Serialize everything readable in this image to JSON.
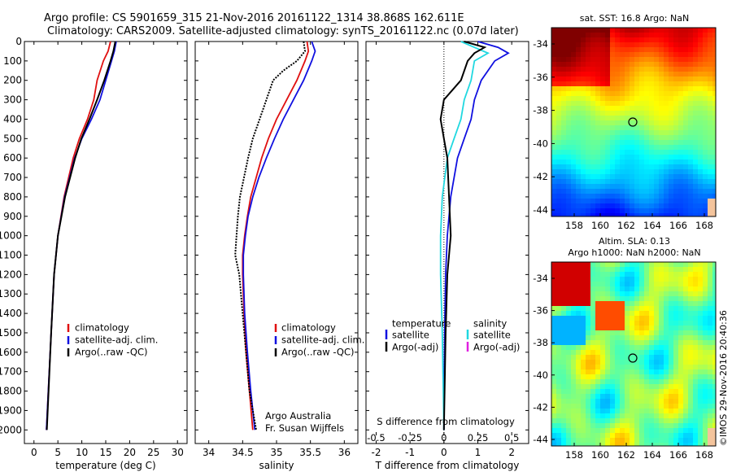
{
  "title": {
    "line1": "Argo profile: CS 5901659_315 21-Nov-2016 20161122_1314 38.868S 162.611E",
    "line2": "Climatology: CARS2009. Satellite-adjusted climatology: synTS_20161122.nc (0.07d later)"
  },
  "colors": {
    "clim": "#e01010",
    "sat": "#1010e0",
    "argo": "#000000",
    "sat_s": "#20d8e0",
    "argo_s": "#e020e0"
  },
  "chart_data": [
    {
      "id": "temperature",
      "type": "line",
      "xlabel": "temperature (deg C)",
      "ylabel": "",
      "xlim": [
        -2,
        32
      ],
      "ylim": [
        2070,
        0
      ],
      "xticks": [
        0,
        5,
        10,
        15,
        20,
        25,
        30
      ],
      "xtick_labels": [
        "0",
        "5",
        "10",
        "15",
        "20",
        "25",
        "30"
      ],
      "yticks": [
        0,
        100,
        200,
        300,
        400,
        500,
        600,
        700,
        800,
        900,
        1000,
        1100,
        1200,
        1300,
        1400,
        1500,
        1600,
        1700,
        1800,
        1900,
        2000
      ],
      "legend": [
        "climatology",
        "satellite-adj. clim.",
        "Argo(..raw -QC)"
      ],
      "series": [
        {
          "name": "climatology",
          "color_key": "clim",
          "depth": [
            0,
            50,
            100,
            200,
            300,
            400,
            500,
            600,
            800,
            1000,
            1200,
            1500,
            2000
          ],
          "values": [
            16.0,
            15.5,
            14.5,
            13.2,
            12.5,
            11.2,
            9.5,
            8.2,
            6.3,
            5.0,
            4.2,
            3.6,
            2.6
          ]
        },
        {
          "name": "satellite-adj. clim.",
          "color_key": "sat",
          "depth": [
            0,
            50,
            100,
            200,
            300,
            400,
            500,
            600,
            800,
            1000,
            1200,
            1500,
            2000
          ],
          "values": [
            17.2,
            16.8,
            16.2,
            15.0,
            13.8,
            12.0,
            10.0,
            8.5,
            6.4,
            5.0,
            4.2,
            3.6,
            2.6
          ]
        },
        {
          "name": "Argo(..raw -QC)",
          "color_key": "argo",
          "depth": [
            0,
            50,
            100,
            200,
            300,
            400,
            500,
            600,
            800,
            1000,
            1200,
            1500,
            2000
          ],
          "values": [
            17.0,
            16.6,
            16.0,
            14.7,
            13.2,
            11.6,
            9.9,
            8.6,
            6.5,
            5.0,
            4.2,
            3.6,
            2.7
          ]
        }
      ]
    },
    {
      "id": "salinity",
      "type": "line",
      "xlabel": "salinity",
      "ylabel": "",
      "xlim": [
        33.8,
        36.2
      ],
      "ylim": [
        2070,
        0
      ],
      "xticks": [
        34,
        34.5,
        35,
        35.5,
        36
      ],
      "xtick_labels": [
        "34",
        "34.5",
        "35",
        "35.5",
        "36"
      ],
      "legend": [
        "climatology",
        "satellite-adj. clim.",
        "Argo(..raw -QC)"
      ],
      "annotation": [
        "Argo Australia",
        "Fr. Susan Wijffels"
      ],
      "series": [
        {
          "name": "climatology",
          "color_key": "clim",
          "depth": [
            0,
            50,
            100,
            200,
            300,
            400,
            500,
            600,
            700,
            800,
            900,
            1000,
            1100,
            1200,
            1400,
            1600,
            1800,
            2000
          ],
          "values": [
            35.45,
            35.47,
            35.42,
            35.3,
            35.15,
            35.0,
            34.88,
            34.78,
            34.7,
            34.62,
            34.57,
            34.53,
            34.5,
            34.5,
            34.52,
            34.55,
            34.6,
            34.65
          ]
        },
        {
          "name": "satellite-adj. clim.",
          "color_key": "sat",
          "depth": [
            0,
            50,
            100,
            200,
            300,
            400,
            500,
            600,
            700,
            800,
            900,
            1000,
            1100,
            1200,
            1400,
            1600,
            1800,
            2000
          ],
          "values": [
            35.52,
            35.57,
            35.52,
            35.4,
            35.25,
            35.1,
            34.97,
            34.85,
            34.74,
            34.65,
            34.58,
            34.54,
            34.51,
            34.51,
            34.53,
            34.57,
            34.62,
            34.68
          ]
        },
        {
          "name": "Argo(..raw -QC)",
          "color_key": "argo",
          "depth": [
            0,
            50,
            100,
            150,
            200,
            300,
            400,
            500,
            600,
            700,
            800,
            900,
            1000,
            1100,
            1200,
            1400,
            1600,
            1800,
            2000
          ],
          "values": [
            35.4,
            35.42,
            35.3,
            35.1,
            34.95,
            34.85,
            34.75,
            34.65,
            34.58,
            34.52,
            34.46,
            34.43,
            34.41,
            34.39,
            34.45,
            34.5,
            34.55,
            34.6,
            34.7
          ]
        }
      ]
    },
    {
      "id": "difference",
      "type": "line",
      "xlabel": "T difference from climatology",
      "xlabel_top": "S difference from climatology",
      "xlim": [
        -2.3,
        2.5
      ],
      "ylim": [
        2070,
        0
      ],
      "xticks": [
        -2,
        -1,
        0,
        1,
        2
      ],
      "xtick_labels": [
        "-2",
        "-1",
        "0",
        "1",
        "2"
      ],
      "sticks_labels": [
        "-0.5",
        "-0.25",
        "0",
        "0.25",
        "0.5"
      ],
      "legend_t": [
        "temperature",
        "satellite",
        "Argo(-adj)"
      ],
      "legend_s": [
        "salinity",
        "satellite",
        "Argo(-adj)"
      ],
      "series": [
        {
          "name": "T satellite",
          "color_key": "sat",
          "depth": [
            0,
            30,
            60,
            100,
            200,
            300,
            400,
            500,
            600,
            800,
            1000,
            1200,
            1500,
            2000
          ],
          "values": [
            1.0,
            1.6,
            1.9,
            1.5,
            1.1,
            0.9,
            0.8,
            0.6,
            0.4,
            0.2,
            0.1,
            0.05,
            0.02,
            0.0
          ]
        },
        {
          "name": "S satellite",
          "color_key": "sat_s",
          "depth": [
            0,
            30,
            60,
            100,
            200,
            300,
            400,
            500,
            600,
            800,
            1000,
            1200,
            1500,
            2000
          ],
          "values": [
            0.5,
            0.9,
            1.3,
            0.9,
            0.8,
            0.6,
            0.5,
            0.3,
            0.1,
            -0.05,
            -0.1,
            -0.1,
            -0.05,
            0.0
          ]
        },
        {
          "name": "T Argo(-adj)",
          "color_key": "argo",
          "depth": [
            0,
            30,
            60,
            100,
            200,
            300,
            400,
            500,
            600,
            800,
            1000,
            1200,
            1500,
            2000
          ],
          "values": [
            0.6,
            1.2,
            0.9,
            0.7,
            0.5,
            0.0,
            -0.1,
            0.0,
            0.1,
            0.15,
            0.2,
            0.1,
            0.05,
            0.0
          ]
        }
      ]
    }
  ],
  "maps": {
    "sst": {
      "title": "sat. SST: 16.8  Argo: NaN",
      "yticks": [
        "-34",
        "-36",
        "-38",
        "-40",
        "-42",
        "-44"
      ],
      "xticks": [
        "158",
        "160",
        "162",
        "164",
        "166",
        "168"
      ]
    },
    "sla": {
      "title_line1": "Altim. SLA: 0.13",
      "title_line2": "Argo h1000: NaN  h2000: NaN",
      "yticks": [
        "-34",
        "-36",
        "-38",
        "-40",
        "-42",
        "-44"
      ],
      "xticks": [
        "158",
        "160",
        "162",
        "164",
        "166",
        "168"
      ]
    }
  },
  "footer_stamp": "©IMOS 29-Nov-2016 20:40:36"
}
